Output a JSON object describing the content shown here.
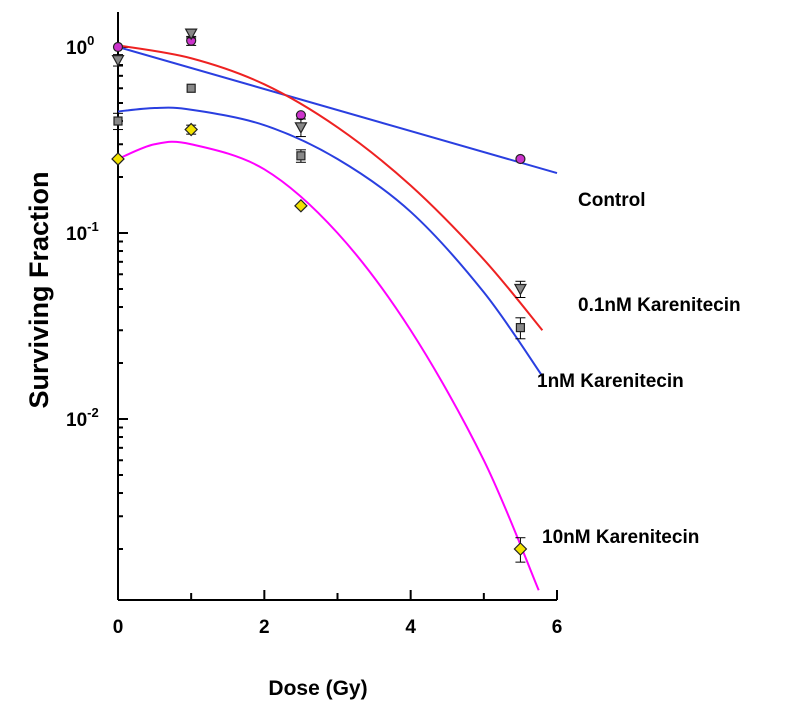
{
  "chart_data": {
    "type": "scatter",
    "title": "",
    "xlabel": "Dose (Gy)",
    "ylabel": "Surviving  Fraction",
    "xlim": [
      0,
      6
    ],
    "ylim": [
      0.0012,
      1.8
    ],
    "y_scale": "log",
    "grid": false,
    "x_ticks": [
      {
        "value": 0,
        "label": "0"
      },
      {
        "value": 2,
        "label": "2"
      },
      {
        "value": 4,
        "label": "4"
      },
      {
        "value": 6,
        "label": "6"
      }
    ],
    "y_ticks": [
      {
        "value": 1,
        "base": "10",
        "exp": "0"
      },
      {
        "value": 0.1,
        "base": "10",
        "exp": "-1"
      },
      {
        "value": 0.01,
        "base": "10",
        "exp": "-2"
      }
    ],
    "series": [
      {
        "name": "Control",
        "marker": "circle",
        "marker_color": "#cc33cc",
        "line_color": "#2a3fe0",
        "x": [
          0,
          1,
          2.5,
          5.5
        ],
        "y": [
          1.0,
          1.08,
          0.43,
          0.25
        ],
        "err": [
          0,
          0.06,
          0,
          0
        ],
        "fit_curve": [
          [
            0,
            1.0
          ],
          [
            6,
            0.21
          ]
        ]
      },
      {
        "name": "0.1nM Karenitecin",
        "marker": "triangle-down",
        "marker_color": "#888888",
        "line_color": "#ee2222",
        "x": [
          0,
          1,
          2.5,
          5.5
        ],
        "y": [
          0.85,
          1.18,
          0.37,
          0.05
        ],
        "err": [
          0.06,
          0.06,
          0.04,
          0.005
        ],
        "fit_curve": [
          [
            0,
            1.02
          ],
          [
            1,
            0.87
          ],
          [
            2,
            0.63
          ],
          [
            3,
            0.37
          ],
          [
            4,
            0.18
          ],
          [
            5,
            0.072
          ],
          [
            5.8,
            0.03
          ]
        ]
      },
      {
        "name": "1nM Karenitecin",
        "marker": "square",
        "marker_color": "#888888",
        "line_color": "#2a3fe0",
        "x": [
          0,
          1,
          2.5,
          5.5
        ],
        "y": [
          0.4,
          0.6,
          0.26,
          0.031
        ],
        "err": [
          0.04,
          0,
          0.02,
          0.004
        ],
        "fit_curve": [
          [
            0,
            0.45
          ],
          [
            0.5,
            0.47
          ],
          [
            1,
            0.46
          ],
          [
            2,
            0.38
          ],
          [
            3,
            0.25
          ],
          [
            4,
            0.13
          ],
          [
            5,
            0.048
          ],
          [
            5.8,
            0.017
          ]
        ]
      },
      {
        "name": "10nM Karenitecin",
        "marker": "diamond",
        "marker_color": "#f2e200",
        "line_color": "#ff00ff",
        "x": [
          0,
          1,
          2.5,
          5.5
        ],
        "y": [
          0.25,
          0.36,
          0.14,
          0.002
        ],
        "err": [
          0,
          0.02,
          0,
          0.0003
        ],
        "fit_curve": [
          [
            0,
            0.25
          ],
          [
            0.5,
            0.3
          ],
          [
            1,
            0.3
          ],
          [
            2,
            0.22
          ],
          [
            3,
            0.1
          ],
          [
            4,
            0.03
          ],
          [
            5,
            0.006
          ],
          [
            5.75,
            0.0012
          ]
        ]
      }
    ]
  }
}
